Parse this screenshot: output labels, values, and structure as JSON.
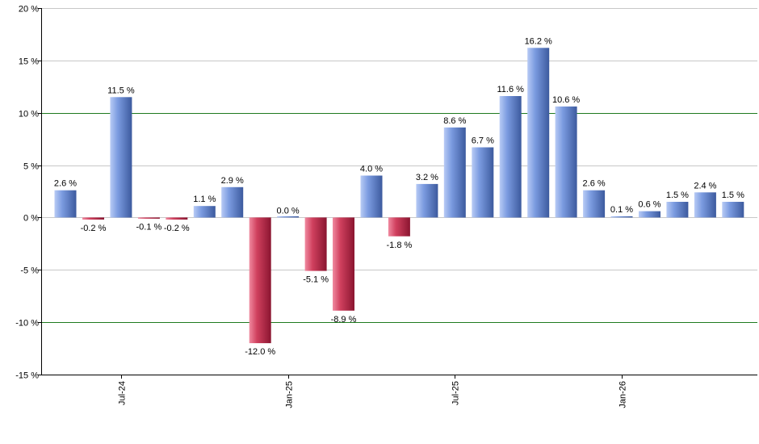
{
  "chart_data": {
    "type": "bar",
    "values": [
      2.6,
      -0.2,
      11.5,
      -0.1,
      -0.2,
      1.1,
      2.9,
      -12.0,
      0.0,
      -5.1,
      -8.9,
      4.0,
      -1.8,
      3.2,
      8.6,
      6.7,
      11.6,
      16.2,
      10.6,
      2.6,
      0.1,
      0.6,
      1.5,
      2.4,
      1.5
    ],
    "data_labels": [
      "2.6 %",
      "-0.2 %",
      "11.5 %",
      "-0.1 %",
      "-0.2 %",
      "1.1 %",
      "2.9 %",
      "-12.0 %",
      "0.0 %",
      "-5.1 %",
      "-8.9 %",
      "4.0 %",
      "-1.8 %",
      "3.2 %",
      "8.6 %",
      "6.7 %",
      "11.6 %",
      "16.2 %",
      "10.6 %",
      "2.6 %",
      "0.1 %",
      "0.6 %",
      "1.5 %",
      "2.4 %",
      "1.5 %"
    ],
    "y_ticks": [
      20,
      15,
      10,
      5,
      0,
      -5,
      -10,
      -15
    ],
    "y_tick_labels": [
      "20 %",
      "15 %",
      "10 %",
      "5 %",
      "0 %",
      "-5 %",
      "-10 %",
      "-15 %"
    ],
    "ylim": [
      -15,
      20
    ],
    "reference_lines": [
      10,
      -10
    ],
    "x_ticks": [
      {
        "label": "Jul-24",
        "bar_index": 2
      },
      {
        "label": "Jan-25",
        "bar_index": 8
      },
      {
        "label": "Jul-25",
        "bar_index": 14
      },
      {
        "label": "Jan-26",
        "bar_index": 20
      }
    ],
    "grid": true,
    "legend": "none",
    "colors": {
      "positive_light": "#b8cbf5",
      "positive_mid": "#7b9be0",
      "positive_dark": "#3c5a9e",
      "negative_light": "#f08aa0",
      "negative_mid": "#d0405e",
      "negative_dark": "#8a1530",
      "grid": "#c8c8c8",
      "reference_line": "#1f7a1f",
      "axis": "#000000"
    }
  }
}
